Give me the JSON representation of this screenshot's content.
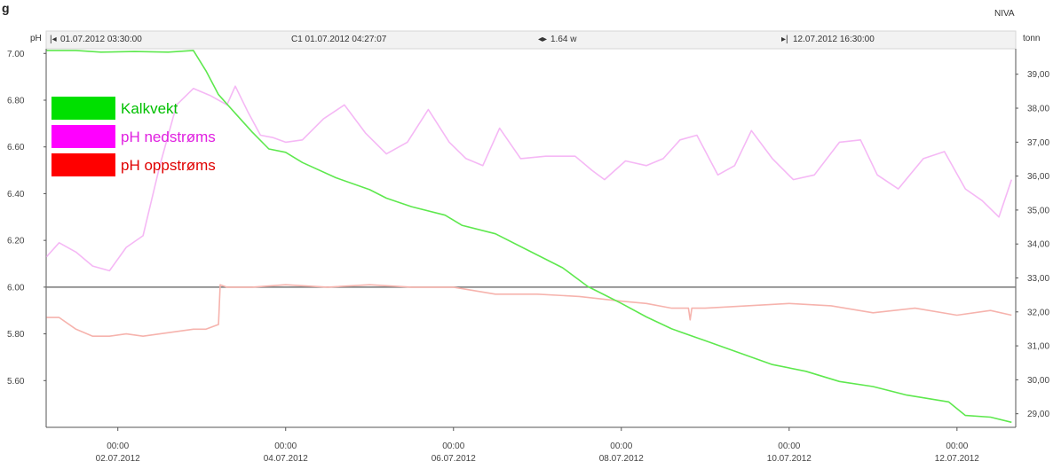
{
  "header": {
    "corner_text": "g",
    "brand": "NIVA",
    "left_unit": "pH",
    "right_unit": "tonn",
    "start_time": "01.07.2012 03:30:00",
    "cursor_time": "C1 01.07.2012 04:27:07",
    "span": "1.64 w",
    "end_time": "12.07.2012 16:30:00"
  },
  "colors": {
    "Kalkvekt": "#5ee84e",
    "pH nedstrøms": "#f5b8f5",
    "pH oppstrøms": "#f6b3ad",
    "legend_pH_nedstrøms_swatch": "#ff00ff",
    "legend_pH_oppstrøms_swatch": "#ff0000",
    "legend_Kalkvekt_swatch": "#00e000",
    "reference_line": "#777777"
  },
  "chart_data": {
    "type": "line",
    "title": "",
    "xlabel": "",
    "ylabel": "pH",
    "y2label": "tonn",
    "xlim": [
      1.146,
      12.7
    ],
    "ylim": [
      5.4,
      7.02
    ],
    "y2lim": [
      28.6,
      39.75
    ],
    "x_unit": "days (July 2012, day-of-month)",
    "x_tick_values": [
      2,
      4,
      6,
      8,
      10,
      12
    ],
    "x_tick_labels": [
      [
        "00:00",
        "02.07.2012"
      ],
      [
        "00:00",
        "04.07.2012"
      ],
      [
        "00:00",
        "06.07.2012"
      ],
      [
        "00:00",
        "08.07.2012"
      ],
      [
        "00:00",
        "10.07.2012"
      ],
      [
        "00:00",
        "12.07.2012"
      ]
    ],
    "y_ticks": [
      "7.00",
      "6.80",
      "6.60",
      "6.40",
      "6.20",
      "6.00",
      "5.80",
      "5.60"
    ],
    "y_tick_values": [
      7.0,
      6.8,
      6.6,
      6.4,
      6.2,
      6.0,
      5.8,
      5.6
    ],
    "y2_ticks": [
      "39,00",
      "38,00",
      "37,00",
      "36,00",
      "35,00",
      "34,00",
      "33,00",
      "32,00",
      "31,00",
      "30,00",
      "29,00"
    ],
    "y2_tick_values": [
      39,
      38,
      37,
      36,
      35,
      34,
      33,
      32,
      31,
      30,
      29
    ],
    "reference_line_y": 6.0,
    "legend": [
      "Kalkvekt",
      "pH nedstrøms",
      "pH oppstrøms"
    ],
    "legend_position": "top-left",
    "series": [
      {
        "name": "Kalkvekt",
        "axis": "right",
        "x": [
          1.15,
          1.5,
          1.8,
          2.2,
          2.6,
          2.9,
          3.05,
          3.2,
          3.4,
          3.6,
          3.8,
          4.0,
          4.2,
          4.6,
          5.0,
          5.2,
          5.5,
          5.9,
          6.1,
          6.5,
          6.9,
          7.3,
          7.6,
          7.8,
          8.0,
          8.3,
          8.6,
          9.0,
          9.4,
          9.8,
          10.2,
          10.6,
          11.0,
          11.4,
          11.9,
          12.1,
          12.4,
          12.65
        ],
        "values": [
          39.7,
          39.7,
          39.65,
          39.67,
          39.65,
          39.7,
          39.1,
          38.4,
          37.85,
          37.3,
          36.8,
          36.7,
          36.4,
          35.95,
          35.6,
          35.35,
          35.1,
          34.85,
          34.55,
          34.3,
          33.8,
          33.3,
          32.75,
          32.5,
          32.25,
          31.85,
          31.5,
          31.15,
          30.8,
          30.45,
          30.25,
          29.95,
          29.8,
          29.55,
          29.35,
          28.95,
          28.9,
          28.75
        ]
      },
      {
        "name": "pH nedstrøms",
        "axis": "left",
        "x": [
          1.15,
          1.3,
          1.5,
          1.7,
          1.9,
          2.1,
          2.3,
          2.5,
          2.7,
          2.9,
          3.1,
          3.3,
          3.4,
          3.55,
          3.7,
          3.85,
          4.0,
          4.2,
          4.45,
          4.7,
          4.95,
          5.2,
          5.45,
          5.7,
          5.95,
          6.15,
          6.35,
          6.55,
          6.8,
          7.1,
          7.3,
          7.45,
          7.65,
          7.8,
          8.05,
          8.3,
          8.5,
          8.7,
          8.9,
          9.15,
          9.35,
          9.55,
          9.8,
          10.05,
          10.3,
          10.6,
          10.85,
          11.05,
          11.3,
          11.6,
          11.85,
          12.1,
          12.3,
          12.5,
          12.65
        ],
        "values": [
          6.13,
          6.19,
          6.15,
          6.09,
          6.07,
          6.17,
          6.22,
          6.52,
          6.78,
          6.85,
          6.82,
          6.78,
          6.86,
          6.75,
          6.65,
          6.64,
          6.62,
          6.63,
          6.72,
          6.78,
          6.66,
          6.57,
          6.62,
          6.76,
          6.62,
          6.55,
          6.52,
          6.68,
          6.55,
          6.56,
          6.56,
          6.56,
          6.5,
          6.46,
          6.54,
          6.52,
          6.55,
          6.63,
          6.65,
          6.48,
          6.52,
          6.67,
          6.55,
          6.46,
          6.48,
          6.62,
          6.63,
          6.48,
          6.42,
          6.55,
          6.58,
          6.42,
          6.37,
          6.3,
          6.46
        ]
      },
      {
        "name": "pH oppstrøms",
        "axis": "left",
        "x": [
          1.15,
          1.3,
          1.5,
          1.7,
          1.9,
          2.1,
          2.3,
          2.5,
          2.7,
          2.9,
          3.05,
          3.2,
          3.22,
          3.3,
          3.6,
          4.0,
          4.5,
          5.0,
          5.5,
          6.0,
          6.5,
          7.0,
          7.5,
          8.0,
          8.3,
          8.6,
          8.8,
          8.82,
          8.84,
          9.0,
          9.5,
          10.0,
          10.5,
          11.0,
          11.5,
          12.0,
          12.4,
          12.65
        ],
        "values": [
          5.87,
          5.87,
          5.82,
          5.79,
          5.79,
          5.8,
          5.79,
          5.8,
          5.81,
          5.82,
          5.82,
          5.84,
          6.01,
          6.0,
          6.0,
          6.01,
          6.0,
          6.01,
          6.0,
          6.0,
          5.97,
          5.97,
          5.96,
          5.94,
          5.93,
          5.91,
          5.91,
          5.86,
          5.91,
          5.91,
          5.92,
          5.93,
          5.92,
          5.89,
          5.91,
          5.88,
          5.9,
          5.88
        ]
      }
    ]
  }
}
